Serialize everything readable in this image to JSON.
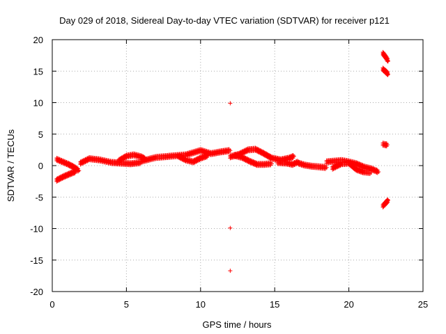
{
  "chart_data": {
    "type": "scatter",
    "title": "Day 029 of 2018, Sidereal Day-to-day VTEC variation (SDTVAR) for receiver p121",
    "xlabel": "GPS time / hours",
    "ylabel": "SDTVAR / TECUs",
    "xlim": [
      0,
      25
    ],
    "ylim": [
      -20,
      20
    ],
    "x_ticks": [
      0,
      5,
      10,
      15,
      20,
      25
    ],
    "y_ticks": [
      -20,
      -15,
      -10,
      -5,
      0,
      5,
      10,
      15,
      20
    ],
    "grid": true,
    "marker": "+",
    "series_color": "#ff0000",
    "tracks": [
      {
        "name": "track-1",
        "points": [
          [
            0.3,
            -2.3
          ],
          [
            0.8,
            -1.7
          ],
          [
            1.3,
            -1.2
          ],
          [
            1.6,
            -0.9
          ]
        ]
      },
      {
        "name": "track-2",
        "points": [
          [
            0.3,
            1.0
          ],
          [
            0.7,
            0.6
          ],
          [
            1.1,
            0.2
          ],
          [
            1.5,
            -0.3
          ],
          [
            1.8,
            -0.8
          ]
        ]
      },
      {
        "name": "track-3",
        "points": [
          [
            1.9,
            0.4
          ],
          [
            2.5,
            1.1
          ],
          [
            3.2,
            0.9
          ],
          [
            4.0,
            0.5
          ],
          [
            4.6,
            0.4
          ],
          [
            5.3,
            0.3
          ],
          [
            6.0,
            0.5
          ]
        ]
      },
      {
        "name": "track-4",
        "points": [
          [
            4.5,
            0.8
          ],
          [
            5.0,
            1.5
          ],
          [
            5.5,
            1.7
          ],
          [
            6.0,
            1.4
          ],
          [
            6.3,
            1.0
          ]
        ]
      },
      {
        "name": "track-5",
        "points": [
          [
            6.0,
            0.7
          ],
          [
            7.0,
            1.3
          ],
          [
            8.0,
            1.5
          ],
          [
            9.0,
            1.7
          ],
          [
            10.0,
            2.4
          ],
          [
            10.7,
            1.9
          ],
          [
            11.4,
            2.2
          ],
          [
            12.0,
            2.4
          ]
        ]
      },
      {
        "name": "track-6",
        "points": [
          [
            8.5,
            1.5
          ],
          [
            9.0,
            0.9
          ],
          [
            9.5,
            0.6
          ],
          [
            10.0,
            1.2
          ],
          [
            10.5,
            1.6
          ]
        ]
      },
      {
        "name": "track-7",
        "points": [
          [
            12.0,
            1.4
          ],
          [
            12.6,
            1.8
          ],
          [
            13.2,
            2.5
          ],
          [
            13.7,
            2.6
          ],
          [
            14.2,
            2.0
          ],
          [
            14.8,
            1.2
          ],
          [
            15.4,
            0.9
          ],
          [
            16.0,
            1.2
          ],
          [
            16.3,
            1.5
          ]
        ]
      },
      {
        "name": "track-8",
        "points": [
          [
            12.3,
            1.6
          ],
          [
            12.8,
            1.3
          ],
          [
            13.3,
            0.7
          ],
          [
            13.8,
            0.2
          ],
          [
            14.3,
            0.2
          ],
          [
            14.8,
            0.3
          ]
        ]
      },
      {
        "name": "track-9",
        "points": [
          [
            15.2,
            0.5
          ],
          [
            15.8,
            0.4
          ],
          [
            16.2,
            0.2
          ],
          [
            16.6,
            0.6
          ]
        ]
      },
      {
        "name": "track-10",
        "points": [
          [
            16.6,
            0.4
          ],
          [
            17.0,
            0.1
          ],
          [
            17.5,
            -0.1
          ],
          [
            18.0,
            -0.2
          ],
          [
            18.5,
            -0.3
          ]
        ]
      },
      {
        "name": "track-11",
        "points": [
          [
            18.5,
            0.6
          ],
          [
            19.0,
            0.7
          ],
          [
            19.5,
            0.8
          ],
          [
            20.0,
            0.6
          ],
          [
            20.5,
            0.3
          ],
          [
            21.0,
            -0.2
          ],
          [
            21.5,
            -0.5
          ],
          [
            22.0,
            -1.0
          ]
        ]
      },
      {
        "name": "track-12",
        "points": [
          [
            18.9,
            -0.4
          ],
          [
            19.5,
            0.3
          ],
          [
            20.0,
            0.4
          ],
          [
            20.5,
            -0.6
          ],
          [
            21.0,
            -1.0
          ],
          [
            21.5,
            -1.1
          ]
        ]
      },
      {
        "name": "track-13",
        "points": [
          [
            22.3,
            17.8
          ],
          [
            22.5,
            17.2
          ],
          [
            22.65,
            16.6
          ]
        ]
      },
      {
        "name": "track-14",
        "points": [
          [
            22.3,
            15.3
          ],
          [
            22.5,
            14.9
          ],
          [
            22.65,
            14.5
          ]
        ]
      },
      {
        "name": "track-15",
        "points": [
          [
            22.3,
            3.4
          ],
          [
            22.5,
            3.3
          ],
          [
            22.6,
            3.3
          ]
        ]
      },
      {
        "name": "track-16",
        "points": [
          [
            22.3,
            -6.4
          ],
          [
            22.5,
            -5.9
          ],
          [
            22.65,
            -5.5
          ]
        ]
      },
      {
        "name": "isolated-points",
        "points": [
          [
            12.0,
            9.9
          ],
          [
            12.0,
            -9.9
          ],
          [
            12.0,
            -16.7
          ]
        ]
      }
    ]
  }
}
